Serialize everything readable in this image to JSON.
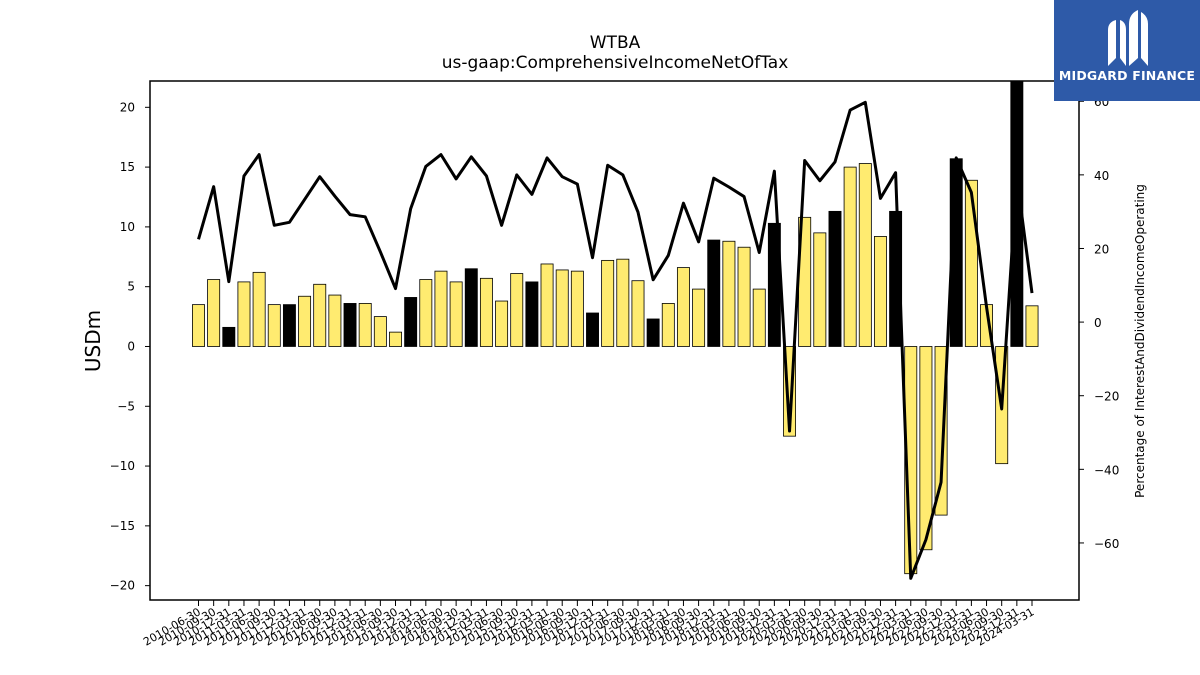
{
  "chart_data": {
    "type": "bar",
    "title": "WTBA",
    "subtitle": "us-gaap:ComprehensiveIncomeNetOfTax",
    "ylabel": "USDm",
    "y2label": "Percentage of InterestAndDividendIncomeOperating",
    "ylim": [
      -21.2,
      22.2
    ],
    "y2lim": [
      -75.5,
      65.5
    ],
    "yticks": [
      -20,
      -15,
      -10,
      -5,
      0,
      5,
      10,
      15,
      20
    ],
    "y2ticks": [
      -60,
      -40,
      -20,
      0,
      20,
      40,
      60
    ],
    "categories": [
      "2010-06-30",
      "2010-09-30",
      "2010-12-31",
      "2011-03-31",
      "2011-06-30",
      "2011-09-30",
      "2011-12-31",
      "2012-03-31",
      "2012-06-30",
      "2012-09-30",
      "2012-12-31",
      "2013-03-31",
      "2013-06-30",
      "2013-09-30",
      "2013-12-31",
      "2014-03-31",
      "2014-06-30",
      "2014-09-30",
      "2014-12-31",
      "2015-03-31",
      "2015-06-30",
      "2015-09-30",
      "2015-12-31",
      "2016-03-31",
      "2016-06-30",
      "2016-09-30",
      "2016-12-31",
      "2017-03-31",
      "2017-06-30",
      "2017-09-30",
      "2017-12-31",
      "2018-03-31",
      "2018-06-30",
      "2018-09-30",
      "2018-12-31",
      "2019-03-31",
      "2019-06-30",
      "2019-09-30",
      "2019-12-31",
      "2020-03-31",
      "2020-06-30",
      "2020-09-30",
      "2020-12-31",
      "2021-03-31",
      "2021-06-30",
      "2021-09-30",
      "2021-12-31",
      "2022-03-31",
      "2022-06-30",
      "2022-09-30",
      "2022-12-31",
      "2023-03-31",
      "2023-06-30",
      "2023-09-30",
      "2023-12-31",
      "2024-03-31"
    ],
    "series": [
      {
        "type": "bar",
        "values": [
          3.5,
          5.6,
          1.6,
          5.4,
          6.2,
          3.5,
          3.5,
          4.2,
          5.2,
          4.3,
          3.6,
          3.6,
          2.5,
          1.2,
          4.1,
          5.6,
          6.3,
          5.4,
          6.5,
          5.7,
          3.8,
          6.1,
          5.4,
          6.9,
          6.4,
          6.3,
          2.8,
          7.2,
          7.3,
          5.5,
          2.3,
          3.6,
          6.6,
          4.8,
          8.9,
          8.8,
          8.3,
          4.8,
          10.3,
          -7.5,
          10.8,
          9.5,
          11.3,
          15.0,
          15.3,
          9.2,
          11.3,
          -19.0,
          -17.0,
          -14.1,
          15.7,
          13.9,
          3.5,
          -9.8,
          22.2,
          3.4
        ],
        "colors": [
          "#ffeb70",
          "#ffeb70",
          "#000000",
          "#ffeb70",
          "#ffeb70",
          "#ffeb70",
          "#000000",
          "#ffeb70",
          "#ffeb70",
          "#ffeb70",
          "#000000",
          "#ffeb70",
          "#ffeb70",
          "#ffeb70",
          "#000000",
          "#ffeb70",
          "#ffeb70",
          "#ffeb70",
          "#000000",
          "#ffeb70",
          "#ffeb70",
          "#ffeb70",
          "#000000",
          "#ffeb70",
          "#ffeb70",
          "#ffeb70",
          "#000000",
          "#ffeb70",
          "#ffeb70",
          "#ffeb70",
          "#000000",
          "#ffeb70",
          "#ffeb70",
          "#ffeb70",
          "#000000",
          "#ffeb70",
          "#ffeb70",
          "#ffeb70",
          "#000000",
          "#ffeb70",
          "#ffeb70",
          "#ffeb70",
          "#000000",
          "#ffeb70",
          "#ffeb70",
          "#ffeb70",
          "#000000",
          "#ffeb70",
          "#ffeb70",
          "#ffeb70",
          "#000000",
          "#ffeb70",
          "#ffeb70",
          "#ffeb70",
          "#000000",
          "#ffeb70"
        ]
      },
      {
        "type": "line",
        "axis": "right",
        "values": [
          22.5,
          36.8,
          11.0,
          39.7,
          45.5,
          26.3,
          27.1,
          33.3,
          39.5,
          34.2,
          29.2,
          28.6,
          19.1,
          9.1,
          30.8,
          42.3,
          45.5,
          38.9,
          44.9,
          39.7,
          26.3,
          40.0,
          34.7,
          44.6,
          39.5,
          37.5,
          17.5,
          42.6,
          40.0,
          29.9,
          11.5,
          18.1,
          32.3,
          21.8,
          39.1,
          36.7,
          34.1,
          18.9,
          41.0,
          -29.6,
          43.9,
          38.4,
          43.5,
          57.6,
          59.7,
          33.6,
          40.6,
          -69.6,
          -59.1,
          -43.5,
          44.6,
          35.2,
          4.1,
          -23.6,
          39.4,
          7.9
        ]
      }
    ],
    "grid": false
  },
  "logo": {
    "text": "MIDGARD FINANCE",
    "bg": "#2e5aa8"
  }
}
